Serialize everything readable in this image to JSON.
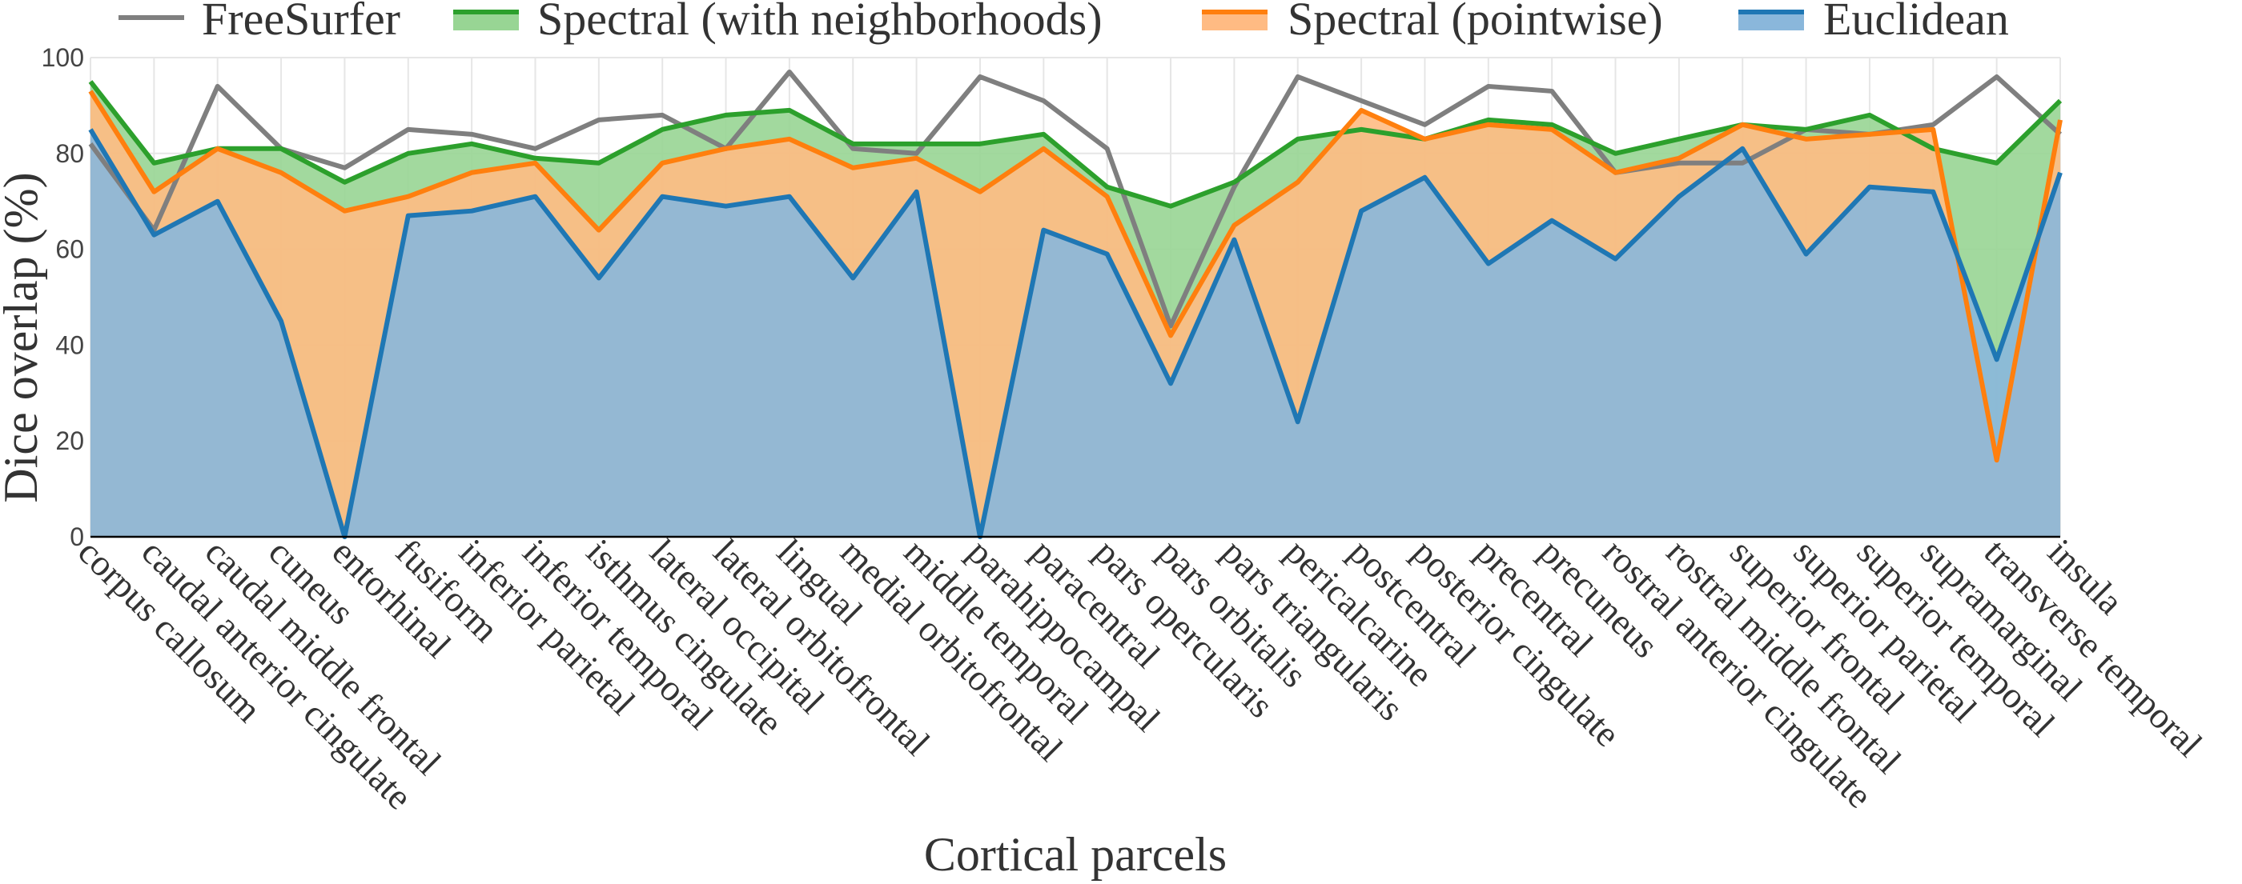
{
  "chart_data": {
    "type": "area",
    "title": "",
    "xlabel": "Cortical parcels",
    "ylabel": "Dice overlap (%)",
    "ylim": [
      0,
      100
    ],
    "yticks": [
      0,
      20,
      40,
      60,
      80,
      100
    ],
    "grid": true,
    "legend_position": "top",
    "categories": [
      "corpus callosum",
      "caudal anterior cingulate",
      "caudal middle frontal",
      "cuneus",
      "entorhinal",
      "fusiform",
      "inferior parietal",
      "inferior temporal",
      "isthmus cingulate",
      "lateral occipital",
      "lateral orbitofrontal",
      "lingual",
      "medial orbitofrontal",
      "middle temporal",
      "parahippocampal",
      "paracentral",
      "pars opercularis",
      "pars orbitalis",
      "pars triangularis",
      "pericalcarine",
      "postcentral",
      "posterior cingulate",
      "precentral",
      "precuneus",
      "rostral anterior cingulate",
      "rostral middle frontal",
      "superior frontal",
      "superior parietal",
      "superior temporal",
      "supramarginal",
      "transverse temporal",
      "insula"
    ],
    "series": [
      {
        "name": "FreeSurfer",
        "style": "line",
        "color": "#7f7f7f",
        "values": [
          82,
          64,
          94,
          81,
          77,
          85,
          84,
          81,
          87,
          88,
          81,
          97,
          81,
          80,
          96,
          91,
          81,
          44,
          73,
          96,
          91,
          86,
          94,
          93,
          76,
          78,
          78,
          85,
          84,
          86,
          96,
          84
        ]
      },
      {
        "name": "Spectral (with neighborhoods)",
        "style": "area",
        "color": "#2ca02c",
        "fill": "#98d594",
        "values": [
          95,
          78,
          81,
          81,
          74,
          80,
          82,
          79,
          78,
          85,
          88,
          89,
          82,
          82,
          82,
          84,
          73,
          69,
          74,
          83,
          85,
          83,
          87,
          86,
          80,
          83,
          86,
          85,
          88,
          81,
          78,
          91
        ]
      },
      {
        "name": "Spectral (pointwise)",
        "style": "area",
        "color": "#ff7f0e",
        "fill": "#ffbb83",
        "values": [
          93,
          72,
          81,
          76,
          68,
          71,
          76,
          78,
          64,
          78,
          81,
          83,
          77,
          79,
          72,
          81,
          71,
          42,
          65,
          74,
          89,
          83,
          86,
          85,
          76,
          79,
          86,
          83,
          84,
          85,
          16,
          87
        ]
      },
      {
        "name": "Euclidean",
        "style": "area",
        "color": "#1f77b4",
        "fill": "#8ab7db",
        "values": [
          85,
          63,
          70,
          45,
          0,
          67,
          68,
          71,
          54,
          71,
          69,
          71,
          54,
          72,
          0,
          64,
          59,
          32,
          62,
          24,
          68,
          75,
          57,
          66,
          58,
          71,
          81,
          59,
          73,
          72,
          37,
          76
        ]
      }
    ],
    "legend_order": [
      "FreeSurfer",
      "Spectral (with neighborhoods)",
      "Spectral (pointwise)",
      "Euclidean"
    ],
    "grid_color": "#e6e6e6",
    "axis_color": "#000000"
  }
}
